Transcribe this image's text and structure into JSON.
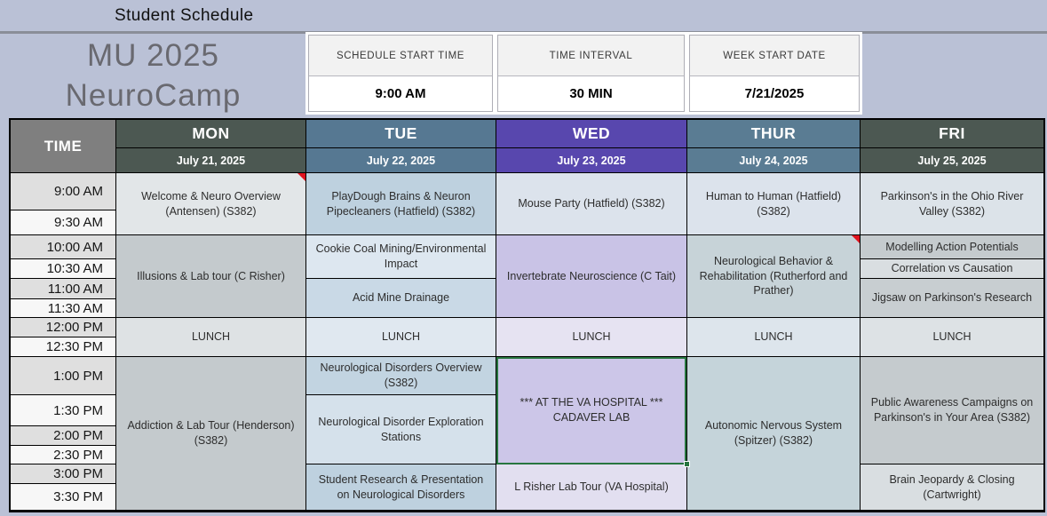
{
  "page": {
    "title": "Student Schedule"
  },
  "banner": {
    "line1": "MU 2025",
    "line2": "NeuroCamp"
  },
  "settings": [
    {
      "label": "SCHEDULE START TIME",
      "value": "9:00 AM"
    },
    {
      "label": "TIME INTERVAL",
      "value": "30 MIN"
    },
    {
      "label": "WEEK START DATE",
      "value": "7/21/2025"
    }
  ],
  "colors": {
    "page_background": "#bac1d6",
    "time_header_bg": "#7f7f7f",
    "selection_green": "#27753f",
    "comment_flag_red": "#e01420"
  },
  "schedule": {
    "time_header": "TIME",
    "times": [
      "9:00 AM",
      "9:30 AM",
      "10:00 AM",
      "10:30 AM",
      "11:00 AM",
      "11:30 AM",
      "12:00 PM",
      "12:30 PM",
      "1:00 PM",
      "1:30 PM",
      "2:00 PM",
      "2:30 PM",
      "3:00 PM",
      "3:30 PM"
    ],
    "days": [
      {
        "name": "MON",
        "date": "July 21, 2025",
        "header_color": "#4c5852",
        "events": [
          {
            "title": "Welcome & Neuro Overview (Antensen) (S382)",
            "row": 1,
            "span": 2,
            "bg": "#e2e6e8",
            "flag": true
          },
          {
            "title": "Illusions & Lab tour (C Risher)",
            "row": 3,
            "span": 4,
            "bg": "#c4cacd"
          },
          {
            "title": "LUNCH",
            "row": 7,
            "span": 2,
            "bg": "#dee2e4"
          },
          {
            "title": "Addiction & Lab Tour (Henderson) (S382)",
            "row": 9,
            "span": 6,
            "bg": "#c4cacd"
          }
        ]
      },
      {
        "name": "TUE",
        "date": "July 22, 2025",
        "header_color": "#567892",
        "events": [
          {
            "title": "PlayDough Brains & Neuron Pipecleaners (Hatfield) (S382)",
            "row": 1,
            "span": 2,
            "bg": "#bed1df"
          },
          {
            "title": "Cookie Coal Mining/Environmental Impact",
            "row": 3,
            "span": 2,
            "bg": "#dde7f0"
          },
          {
            "title": "Acid Mine Drainage",
            "row": 5,
            "span": 2,
            "bg": "#c9d9e6"
          },
          {
            "title": "LUNCH",
            "row": 7,
            "span": 2,
            "bg": "#e0e8f0"
          },
          {
            "title": "Neurological Disorders Overview (S382)",
            "row": 9,
            "span": 1,
            "bg": "#c2d4e1"
          },
          {
            "title": "Neurological Disorder Exploration Stations",
            "row": 10,
            "span": 3,
            "bg": "#d5e1eb"
          },
          {
            "title": "Student Research & Presentation on Neurological Disorders",
            "row": 13,
            "span": 2,
            "bg": "#bed1df"
          }
        ]
      },
      {
        "name": "WED",
        "date": "July 23, 2025",
        "header_color": "#5847ae",
        "events": [
          {
            "title": "Mouse Party (Hatfield) (S382)",
            "row": 1,
            "span": 2,
            "bg": "#dce3ec"
          },
          {
            "title": "Invertebrate Neuroscience (C Tait)",
            "row": 3,
            "span": 4,
            "bg": "#c9c3e6"
          },
          {
            "title": "LUNCH",
            "row": 7,
            "span": 2,
            "bg": "#e6e3f2"
          },
          {
            "title": "*** AT THE VA HOSPITAL ***\nCADAVER LAB",
            "row": 9,
            "span": 4,
            "bg": "#ccc6e8",
            "selected": true
          },
          {
            "title": "L Risher Lab Tour (VA Hospital)",
            "row": 13,
            "span": 2,
            "bg": "#e2dff0"
          }
        ]
      },
      {
        "name": "THUR",
        "date": "July 24, 2025",
        "header_color": "#5a7c93",
        "events": [
          {
            "title": "Human to Human (Hatfield) (S382)",
            "row": 1,
            "span": 2,
            "bg": "#dce3ec"
          },
          {
            "title": "Neurological Behavior & Rehabilitation (Rutherford and Prather)",
            "row": 3,
            "span": 4,
            "bg": "#c7d3d8",
            "flag": true
          },
          {
            "title": "LUNCH",
            "row": 7,
            "span": 2,
            "bg": "#dde5ec"
          },
          {
            "title": "Autonomic Nervous System (Spitzer) (S382)",
            "row": 9,
            "span": 6,
            "bg": "#c5d4da"
          }
        ]
      },
      {
        "name": "FRI",
        "date": "July 25, 2025",
        "header_color": "#4c5852",
        "events": [
          {
            "title": "Parkinson's in the Ohio River Valley  (S382)",
            "row": 1,
            "span": 2,
            "bg": "#dce3e9"
          },
          {
            "title": "Modelling Action Potentials",
            "row": 3,
            "span": 1,
            "bg": "#c5cbce"
          },
          {
            "title": "Correlation vs Causation",
            "row": 4,
            "span": 1,
            "bg": "#d9dee1"
          },
          {
            "title": "Jigsaw on Parkinson's Research",
            "row": 5,
            "span": 2,
            "bg": "#c8ced1"
          },
          {
            "title": "LUNCH",
            "row": 7,
            "span": 2,
            "bg": "#dde2e5"
          },
          {
            "title": "Public Awareness Campaigns on Parkinson's in Your Area (S382)",
            "row": 9,
            "span": 4,
            "bg": "#c5cbce"
          },
          {
            "title": "Brain Jeopardy & Closing (Cartwright)",
            "row": 13,
            "span": 2,
            "bg": "#d9dee1"
          }
        ]
      }
    ]
  }
}
